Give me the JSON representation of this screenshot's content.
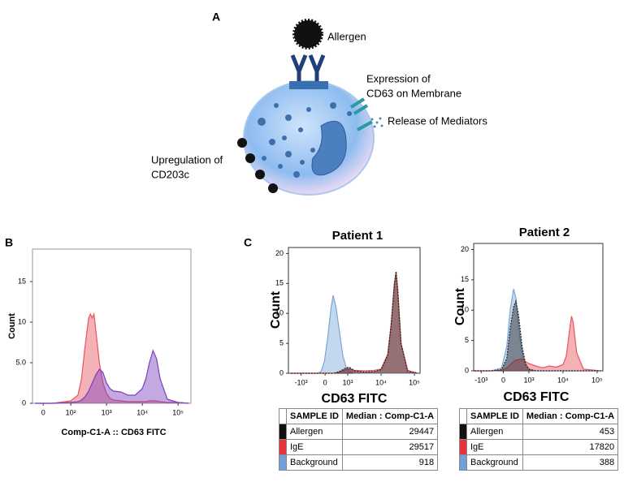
{
  "panel_labels": [
    "A",
    "B",
    "C"
  ],
  "diagram": {
    "allergen": "Allergen",
    "cd63": [
      "Expression of",
      "CD63 on Membrane"
    ],
    "mediators": "Release of Mediators",
    "cd203c": [
      "Upregulation of",
      "CD203c"
    ]
  },
  "chart_data": [
    {
      "type": "area",
      "x_label": "Comp-C1-A :: CD63 FITC",
      "y_label": "Count",
      "x": [
        1.0,
        1.5,
        2.0,
        2.2,
        2.3,
        2.4,
        2.5,
        2.55,
        2.6,
        2.65,
        2.7,
        2.8,
        2.9,
        3.0,
        3.1,
        3.2,
        3.4,
        3.6,
        3.8,
        4.0,
        4.1,
        4.2,
        4.3,
        4.4,
        4.5,
        4.7,
        5.0,
        5.3
      ],
      "series": [
        {
          "color": "#e8555e",
          "values": [
            0,
            0,
            0.3,
            1,
            3,
            7,
            10.5,
            11,
            10.5,
            11,
            9,
            5,
            2.5,
            1.2,
            0.6,
            0.4,
            0.3,
            0.2,
            0.2,
            0.2,
            0.2,
            0.3,
            0.3,
            0.3,
            0.2,
            0.1,
            0.1,
            0
          ]
        },
        {
          "color": "#7b3fbf",
          "values": [
            0,
            0,
            0.1,
            0.2,
            0.4,
            0.8,
            1.5,
            2,
            2.5,
            3,
            3.5,
            4.2,
            3.8,
            2.5,
            1.8,
            1.5,
            1.4,
            1.0,
            1.0,
            1.8,
            3,
            5,
            6.5,
            5.5,
            3,
            0.5,
            0.1,
            0
          ]
        }
      ],
      "xlim": [
        0.93,
        5.36
      ],
      "ylim": [
        0,
        19
      ],
      "xticks": [
        {
          "value": 1.23,
          "label": "0"
        },
        {
          "value": 2,
          "label": "10²"
        },
        {
          "value": 3,
          "label": "10³"
        },
        {
          "value": 4,
          "label": "10⁴"
        },
        {
          "value": 5,
          "label": "10⁵"
        }
      ],
      "yticks": [
        0,
        {
          "value": 5,
          "label": "5.0"
        },
        10,
        15
      ]
    },
    {
      "type": "area",
      "title": "Patient 1",
      "x_label": "CD63 FITC",
      "y_label": "Count",
      "x": [
        1.3,
        1.8,
        2.1,
        2.2,
        2.3,
        2.4,
        2.5,
        2.56,
        2.65,
        2.75,
        2.85,
        2.95,
        3.05,
        3.2,
        3.5,
        3.8,
        4.0,
        4.2,
        4.3,
        4.4,
        4.45,
        4.5,
        4.6,
        4.8,
        5.1
      ],
      "series": [
        {
          "color": "#7aa6d8",
          "values": [
            0,
            0,
            0,
            0.3,
            2,
            6,
            11,
            13,
            11,
            7,
            3,
            1,
            0.3,
            0,
            0,
            0,
            0,
            0,
            0,
            0,
            0,
            0,
            0,
            0,
            0
          ]
        },
        {
          "color": "#e8555e",
          "values": [
            0,
            0,
            0,
            0,
            0,
            0,
            0,
            0,
            0.1,
            0.2,
            0.4,
            0.6,
            0.7,
            0.5,
            0.4,
            0.5,
            0.7,
            3.2,
            8,
            15,
            16.8,
            14,
            5,
            0.5,
            0
          ]
        },
        {
          "color": "#222222",
          "values": [
            0,
            0,
            0,
            0,
            0,
            0,
            0,
            0,
            0.1,
            0.3,
            0.6,
            0.9,
            1,
            0.4,
            0.2,
            0.3,
            0.6,
            3,
            8,
            15,
            17,
            14,
            5,
            0.3,
            0
          ]
        }
      ],
      "xlim": [
        1.22,
        5.17
      ],
      "ylim": [
        0,
        21
      ],
      "xticks": [
        {
          "value": 1.6,
          "label": "-10³"
        },
        {
          "value": 2.32,
          "label": "0"
        },
        {
          "value": 3,
          "label": "10³"
        },
        {
          "value": 4,
          "label": "10⁴"
        },
        {
          "value": 5,
          "label": "10⁵"
        }
      ],
      "yticks": [
        0,
        5,
        10,
        15,
        20
      ]
    },
    {
      "type": "area",
      "title": "Patient 2",
      "x_label": "CD63 FITC",
      "y_label": "Count",
      "x": [
        1.4,
        1.9,
        2.2,
        2.35,
        2.45,
        2.55,
        2.62,
        2.7,
        2.8,
        2.9,
        3.0,
        3.2,
        3.4,
        3.6,
        3.8,
        4.0,
        4.1,
        4.2,
        4.25,
        4.3,
        4.4,
        4.6,
        5.1
      ],
      "series": [
        {
          "color": "#7aa6d8",
          "values": [
            0,
            0,
            0.5,
            4,
            10,
            13.5,
            12,
            7,
            3,
            0.8,
            0.2,
            0,
            0,
            0,
            0,
            0,
            0,
            0,
            0,
            0,
            0,
            0,
            0
          ]
        },
        {
          "color": "#e8555e",
          "values": [
            0,
            0,
            0.1,
            0.5,
            1,
            1.5,
            1.8,
            1.8,
            2,
            1.5,
            1.2,
            0.8,
            0.5,
            0.8,
            0.6,
            1,
            2.5,
            7,
            9,
            8,
            3,
            0.3,
            0
          ]
        },
        {
          "color": "#222222",
          "values": [
            0,
            0,
            0.2,
            2,
            7,
            10.5,
            11.5,
            9,
            4,
            1.2,
            0.3,
            0,
            0,
            0,
            0,
            0,
            0,
            0,
            0,
            0,
            0,
            0,
            0
          ]
        }
      ],
      "xlim": [
        1.38,
        5.17
      ],
      "ylim": [
        0,
        21
      ],
      "xticks": [
        {
          "value": 1.6,
          "label": "-10³"
        },
        {
          "value": 2.25,
          "label": "0"
        },
        {
          "value": 3,
          "label": "10³"
        },
        {
          "value": 4,
          "label": "10⁴"
        },
        {
          "value": 5,
          "label": "10⁵"
        }
      ],
      "yticks": [
        0,
        5,
        10,
        15,
        20
      ]
    }
  ],
  "tables": [
    {
      "header": [
        "SAMPLE ID",
        "Median : Comp-C1-A"
      ],
      "rows": [
        {
          "color": "#111111",
          "cells": [
            "Allergen",
            "29447"
          ]
        },
        {
          "color": "#e8333c",
          "cells": [
            "IgE",
            "29517"
          ]
        },
        {
          "color": "#6fa0d8",
          "cells": [
            "Background",
            "918"
          ]
        }
      ]
    },
    {
      "header": [
        "SAMPLE ID",
        "Median : Comp-C1-A"
      ],
      "rows": [
        {
          "color": "#111111",
          "cells": [
            "Allergen",
            "453"
          ]
        },
        {
          "color": "#e8333c",
          "cells": [
            "IgE",
            "17820"
          ]
        },
        {
          "color": "#6fa0d8",
          "cells": [
            "Background",
            "388"
          ]
        }
      ]
    }
  ]
}
